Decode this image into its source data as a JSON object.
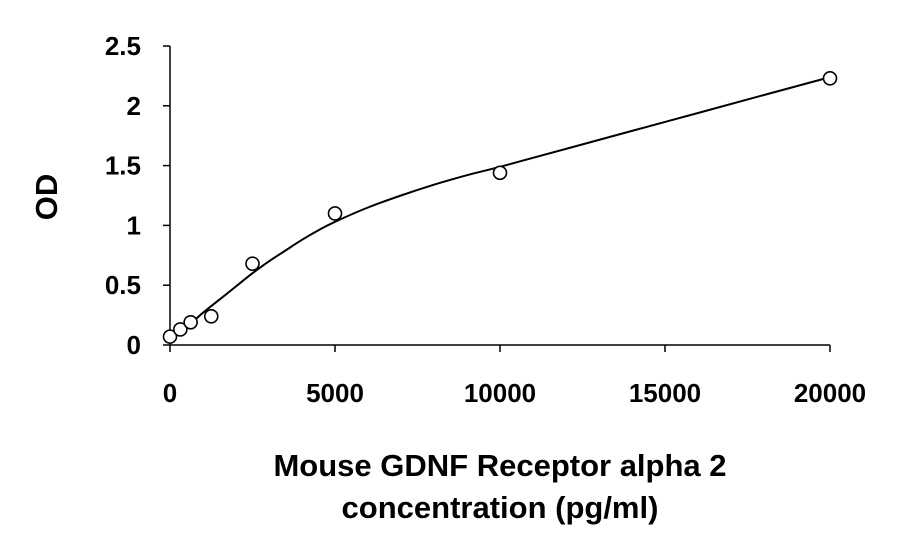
{
  "chart_data": {
    "type": "scatter",
    "title": "",
    "xlabel_lines": [
      "Mouse GDNF Receptor alpha 2",
      "concentration (pg/ml)"
    ],
    "ylabel": "OD",
    "xlim": [
      0,
      20000
    ],
    "ylim": [
      0,
      2.5
    ],
    "x_ticks": [
      0,
      5000,
      10000,
      15000,
      20000
    ],
    "y_ticks": [
      0,
      0.5,
      1,
      1.5,
      2,
      2.5
    ],
    "x_tick_labels": [
      "0",
      "5000",
      "10000",
      "15000",
      "20000"
    ],
    "y_tick_labels": [
      "0",
      "0.5",
      "1",
      "1.5",
      "2",
      "2.5"
    ],
    "grid": false,
    "legend": "none",
    "marker": "open-circle",
    "fit_line": "smooth standard curve",
    "series": [
      {
        "x": [
          0,
          312.5,
          625,
          1250,
          2500,
          5000,
          10000,
          20000
        ],
        "y": [
          0.07,
          0.13,
          0.19,
          0.24,
          0.68,
          1.1,
          1.44,
          2.23
        ]
      }
    ],
    "fit_curve": {
      "x": [
        0,
        500,
        1000,
        1500,
        2000,
        2500,
        3000,
        3500,
        4000,
        4500,
        5000,
        6000,
        7000,
        8000,
        9000,
        10000,
        12000,
        14000,
        16000,
        18000,
        20000
      ],
      "y": [
        0.06,
        0.15,
        0.27,
        0.38,
        0.49,
        0.6,
        0.7,
        0.79,
        0.88,
        0.96,
        1.03,
        1.15,
        1.25,
        1.34,
        1.42,
        1.49,
        1.64,
        1.79,
        1.94,
        2.09,
        2.24
      ]
    },
    "colors": {
      "axis": "#000000",
      "marker_stroke": "#000000",
      "marker_fill": "#ffffff",
      "curve": "#000000"
    }
  }
}
